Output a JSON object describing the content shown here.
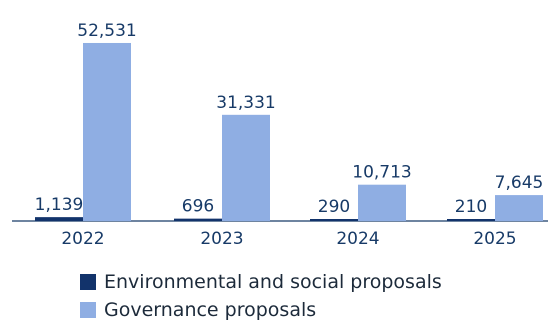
{
  "chart_data": {
    "type": "bar",
    "categories": [
      "2022",
      "2023",
      "2024",
      "2025"
    ],
    "series": [
      {
        "name": "Environmental and social proposals",
        "color": "#12336b",
        "values": [
          1139,
          696,
          290,
          210
        ]
      },
      {
        "name": "Governance proposals",
        "color": "#8faee3",
        "values": [
          52531,
          31331,
          10713,
          7645
        ]
      }
    ],
    "value_labels": [
      [
        "1,139",
        "696",
        "290",
        "210"
      ],
      [
        "52,531",
        "31,331",
        "10,713",
        "7,645"
      ]
    ],
    "ylim": [
      0,
      54000
    ],
    "grid": false,
    "legend_position": "bottom",
    "axis_color": "#173a67"
  }
}
